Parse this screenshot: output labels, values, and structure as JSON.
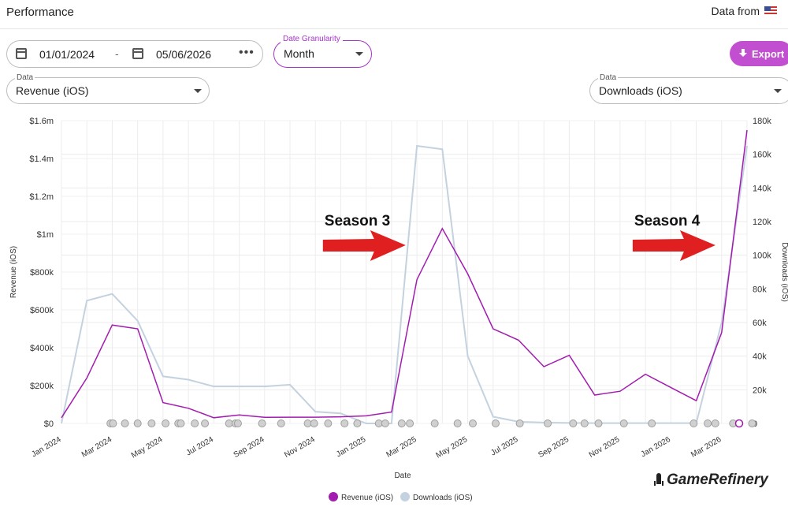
{
  "header": {
    "title": "Performance",
    "data_from": "Data from"
  },
  "filters": {
    "start_date": "01/01/2024",
    "separator": "-",
    "end_date": "05/06/2026",
    "more": "•••",
    "granularity_label": "Date Granularity",
    "granularity_value": "Month",
    "export_label": "Export",
    "left_metric_label": "Data",
    "left_metric_value": "Revenue (iOS)",
    "right_metric_label": "Data",
    "right_metric_value": "Downloads (iOS)"
  },
  "brand": "GameRefinery",
  "colors": {
    "revenue": "#a21caf",
    "downloads": "#c4d2e0",
    "accent": "#c24fcf",
    "arrow": "#e02020",
    "marker": "#d0d0d0"
  },
  "chart_data": {
    "type": "line",
    "xlabel": "Date",
    "ylabel": "Revenue (iOS)",
    "y2label": "Downloads (iOS)",
    "ylim": [
      0,
      1600000
    ],
    "y2lim": [
      0,
      180000
    ],
    "y_ticks": [
      "$0",
      "$200k",
      "$400k",
      "$600k",
      "$800k",
      "$1m",
      "$1.2m",
      "$1.4m",
      "$1.6m"
    ],
    "y2_ticks": [
      "0",
      "20k",
      "40k",
      "60k",
      "80k",
      "100k",
      "120k",
      "140k",
      "160k",
      "180k"
    ],
    "x_ticks": [
      "Jan 2024",
      "Mar 2024",
      "May 2024",
      "Jul 2024",
      "Sep 2024",
      "Nov 2024",
      "Jan 2025",
      "Mar 2025",
      "May 2025",
      "Jul 2025",
      "Sep 2025",
      "Nov 2025",
      "Jan 2026",
      "Mar 2026"
    ],
    "x": [
      "2024-01",
      "2024-02",
      "2024-03",
      "2024-04",
      "2024-05",
      "2024-06",
      "2024-07",
      "2024-08",
      "2024-09",
      "2024-10",
      "2024-11",
      "2024-12",
      "2025-01",
      "2025-02",
      "2025-03",
      "2025-04",
      "2025-05",
      "2025-06",
      "2025-07",
      "2025-08",
      "2025-09",
      "2025-10",
      "2025-11",
      "2025-12",
      "2026-01",
      "2026-02",
      "2026-03",
      "2026-04"
    ],
    "series": [
      {
        "name": "Revenue (iOS)",
        "axis": "left",
        "values": [
          30000,
          240000,
          520000,
          500000,
          110000,
          80000,
          30000,
          45000,
          32000,
          33000,
          33000,
          35000,
          40000,
          60000,
          760000,
          1030000,
          790000,
          500000,
          440000,
          300000,
          360000,
          150000,
          170000,
          260000,
          190000,
          120000,
          480000,
          1550000
        ]
      },
      {
        "name": "Downloads (iOS)",
        "axis": "right",
        "values": [
          0,
          73000,
          77000,
          61000,
          28000,
          26000,
          22000,
          22000,
          22000,
          23000,
          7000,
          6000,
          0,
          0,
          165000,
          163000,
          40000,
          4000,
          1000,
          500,
          300,
          200,
          200,
          200,
          200,
          200,
          60000,
          165000
        ]
      }
    ],
    "event_marker_x": [
      1.93,
      2.03,
      2.5,
      3.0,
      3.55,
      4.1,
      4.6,
      4.7,
      5.25,
      5.65,
      6.6,
      6.85,
      6.95,
      7.9,
      8.65,
      9.7,
      9.95,
      10.5,
      11.15,
      11.65,
      12.5,
      12.75,
      13.4,
      13.72,
      14.7,
      15.6,
      16.2,
      17.1,
      18.05,
      19.15,
      20.15,
      20.6,
      21.15,
      22.15,
      23.25,
      24.9,
      25.45,
      25.75,
      26.45,
      27.2
    ],
    "annotations": [
      {
        "text": "Season 3",
        "month_index": 13.4
      },
      {
        "text": "Season 4",
        "month_index": 25.6
      }
    ],
    "legend_position": "bottom-center",
    "grid": true
  }
}
